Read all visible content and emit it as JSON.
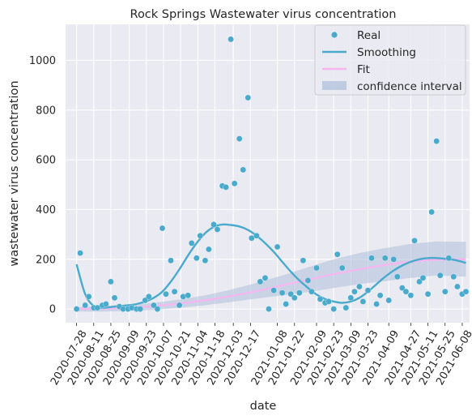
{
  "chart_data": {
    "type": "scatter",
    "title": "Rock Springs Wastewater virus concentration",
    "xlabel": "date",
    "ylabel": "wastewater virus concentration",
    "xlim": [
      "2020-07-19",
      "2021-06-14"
    ],
    "ylim": [
      -55,
      1145
    ],
    "yticks": [
      0,
      200,
      400,
      600,
      800,
      1000
    ],
    "xticks": [
      "2020-07-28",
      "2020-08-11",
      "2020-08-25",
      "2020-09-09",
      "2020-09-23",
      "2020-10-07",
      "2020-10-21",
      "2020-11-04",
      "2020-11-18",
      "2020-12-03",
      "2020-12-17",
      "2021-01-08",
      "2021-01-22",
      "2021-02-09",
      "2021-02-23",
      "2021-03-09",
      "2021-03-23",
      "2021-04-09",
      "2021-04-27",
      "2021-05-11",
      "2021-05-25",
      "2021-06-08"
    ],
    "grid": true,
    "legend_position": "top-right",
    "colors": {
      "plot_bg": "#eaeaf2",
      "grid": "#ffffff",
      "points": "#4aaacc",
      "smoothing": "#4aaacc",
      "fit": "#f7b6f0",
      "confidence_fill": "#b4c3dc"
    },
    "series": [
      {
        "name": "Real",
        "kind": "points",
        "x": [
          "2020-07-28",
          "2020-07-31",
          "2020-08-04",
          "2020-08-07",
          "2020-08-11",
          "2020-08-14",
          "2020-08-18",
          "2020-08-21",
          "2020-08-25",
          "2020-08-28",
          "2020-09-01",
          "2020-09-04",
          "2020-09-08",
          "2020-09-11",
          "2020-09-15",
          "2020-09-18",
          "2020-09-22",
          "2020-09-25",
          "2020-09-29",
          "2020-10-02",
          "2020-10-06",
          "2020-10-09",
          "2020-10-13",
          "2020-10-16",
          "2020-10-20",
          "2020-10-23",
          "2020-10-27",
          "2020-10-30",
          "2020-11-03",
          "2020-11-06",
          "2020-11-10",
          "2020-11-13",
          "2020-11-17",
          "2020-11-20",
          "2020-11-24",
          "2020-11-27",
          "2020-12-01",
          "2020-12-04",
          "2020-12-08",
          "2020-12-11",
          "2020-12-15",
          "2020-12-18",
          "2020-12-22",
          "2020-12-25",
          "2020-12-29",
          "2021-01-01",
          "2021-01-05",
          "2021-01-08",
          "2021-01-12",
          "2021-01-15",
          "2021-01-19",
          "2021-01-22",
          "2021-01-26",
          "2021-01-29",
          "2021-02-02",
          "2021-02-05",
          "2021-02-09",
          "2021-02-12",
          "2021-02-16",
          "2021-02-19",
          "2021-02-23",
          "2021-02-26",
          "2021-03-02",
          "2021-03-05",
          "2021-03-09",
          "2021-03-12",
          "2021-03-16",
          "2021-03-19",
          "2021-03-23",
          "2021-03-26",
          "2021-03-30",
          "2021-04-02",
          "2021-04-06",
          "2021-04-09",
          "2021-04-13",
          "2021-04-16",
          "2021-04-20",
          "2021-04-23",
          "2021-04-27",
          "2021-04-30",
          "2021-05-04",
          "2021-05-07",
          "2021-05-11",
          "2021-05-14",
          "2021-05-18",
          "2021-05-21",
          "2021-05-25",
          "2021-05-28",
          "2021-06-01",
          "2021-06-04",
          "2021-06-08",
          "2021-06-11"
        ],
        "y": [
          0,
          225,
          15,
          50,
          5,
          5,
          15,
          20,
          110,
          45,
          10,
          0,
          0,
          5,
          0,
          0,
          35,
          50,
          15,
          0,
          325,
          60,
          195,
          70,
          15,
          50,
          55,
          265,
          205,
          295,
          195,
          240,
          340,
          320,
          495,
          490,
          1085,
          505,
          685,
          560,
          850,
          285,
          295,
          110,
          125,
          0,
          75,
          250,
          65,
          20,
          60,
          45,
          65,
          195,
          115,
          70,
          165,
          40,
          25,
          30,
          0,
          220,
          165,
          5,
          45,
          70,
          90,
          30,
          75,
          205,
          20,
          55,
          205,
          35,
          200,
          130,
          85,
          70,
          55,
          275,
          110,
          125,
          60,
          390,
          675,
          135,
          70,
          205,
          130,
          90,
          60,
          70
        ]
      },
      {
        "name": "Smoothing",
        "kind": "line",
        "x": [
          "2020-07-28",
          "2020-08-04",
          "2020-08-11",
          "2020-08-18",
          "2020-08-25",
          "2020-09-01",
          "2020-09-08",
          "2020-09-15",
          "2020-09-22",
          "2020-09-29",
          "2020-10-06",
          "2020-10-13",
          "2020-10-20",
          "2020-10-27",
          "2020-11-03",
          "2020-11-10",
          "2020-11-17",
          "2020-11-24",
          "2020-12-01",
          "2020-12-08",
          "2020-12-15",
          "2020-12-22",
          "2020-12-29",
          "2021-01-05",
          "2021-01-12",
          "2021-01-19",
          "2021-01-26",
          "2021-02-02",
          "2021-02-09",
          "2021-02-16",
          "2021-02-23",
          "2021-03-02",
          "2021-03-09",
          "2021-03-16",
          "2021-03-23",
          "2021-03-30",
          "2021-04-06",
          "2021-04-13",
          "2021-04-20",
          "2021-04-27",
          "2021-05-04",
          "2021-05-11",
          "2021-05-18",
          "2021-05-25",
          "2021-06-01",
          "2021-06-08",
          "2021-06-11"
        ],
        "y": [
          180,
          60,
          12,
          5,
          8,
          12,
          15,
          20,
          30,
          45,
          70,
          110,
          160,
          215,
          265,
          305,
          330,
          340,
          338,
          332,
          318,
          295,
          265,
          230,
          190,
          150,
          115,
          85,
          58,
          40,
          30,
          25,
          30,
          45,
          70,
          100,
          130,
          155,
          175,
          190,
          200,
          205,
          205,
          202,
          198,
          190,
          185
        ]
      },
      {
        "name": "Fit",
        "kind": "line",
        "x": [
          "2020-07-28",
          "2020-08-18",
          "2020-09-08",
          "2020-09-29",
          "2020-10-20",
          "2020-11-10",
          "2020-12-01",
          "2020-12-22",
          "2021-01-12",
          "2021-02-02",
          "2021-02-23",
          "2021-03-16",
          "2021-04-06",
          "2021-04-27",
          "2021-05-18",
          "2021-06-11"
        ],
        "y": [
          0,
          2,
          5,
          12,
          22,
          35,
          52,
          72,
          95,
          118,
          140,
          160,
          177,
          190,
          198,
          200
        ]
      },
      {
        "name": "confidence interval",
        "kind": "band",
        "x": [
          "2020-07-28",
          "2020-08-18",
          "2020-09-08",
          "2020-09-29",
          "2020-10-20",
          "2020-11-10",
          "2020-12-01",
          "2020-12-22",
          "2021-01-12",
          "2021-02-02",
          "2021-02-23",
          "2021-03-16",
          "2021-04-06",
          "2021-04-27",
          "2021-05-18",
          "2021-06-11"
        ],
        "lower": [
          -10,
          -10,
          -8,
          -3,
          5,
          15,
          28,
          42,
          55,
          68,
          85,
          100,
          112,
          125,
          135,
          130
        ],
        "upper": [
          8,
          12,
          18,
          25,
          38,
          55,
          78,
          105,
          135,
          168,
          200,
          225,
          245,
          262,
          272,
          270
        ]
      }
    ]
  }
}
